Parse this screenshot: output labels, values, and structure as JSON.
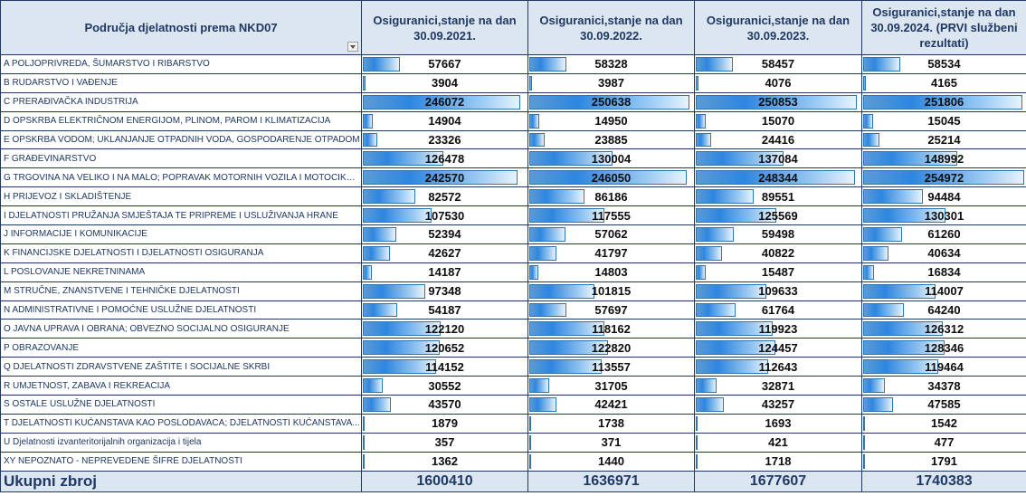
{
  "header": {
    "area": "Područja djelatnosti prema NKD07",
    "columns": [
      "Osiguranici,stanje na dan 30.09.2021.",
      "Osiguranici,stanje na dan 30.09.2022.",
      "Osiguranici,stanje na dan 30.09.2023.",
      "Osiguranici,stanje na dan 30.09.2024. (PRVI službeni rezultati)"
    ]
  },
  "rows": [
    {
      "label": "A POLJOPRIVREDA, ŠUMARSTVO I RIBARSTVO",
      "values": [
        "57667",
        "58328",
        "58457",
        "58534"
      ]
    },
    {
      "label": "B RUDARSTVO I VAĐENJE",
      "values": [
        "3904",
        "3987",
        "4076",
        "4165"
      ]
    },
    {
      "label": "C PRERAĐIVAČKA INDUSTRIJA",
      "values": [
        "246072",
        "250638",
        "250853",
        "251806"
      ]
    },
    {
      "label": "D OPSKRBA ELEKTRIČNOM ENERGIJOM, PLINOM, PAROM I KLIMATIZACIJA",
      "values": [
        "14904",
        "14950",
        "15070",
        "15045"
      ]
    },
    {
      "label": "E OPSKRBA VODOM; UKLANJANJE OTPADNIH VODA, GOSPODARENJE OTPADOM",
      "values": [
        "23326",
        "23885",
        "24416",
        "25214"
      ]
    },
    {
      "label": "F GRAĐEVINARSTVO",
      "values": [
        "126478",
        "130004",
        "137084",
        "148992"
      ]
    },
    {
      "label": "G TRGOVINA NA VELIKO I NA MALO; POPRAVAK MOTORNIH VOZILA I MOTOCIKALA",
      "values": [
        "242570",
        "246050",
        "248344",
        "254972"
      ]
    },
    {
      "label": "H PRIJEVOZ I SKLADIŠTENJE",
      "values": [
        "82572",
        "86186",
        "89551",
        "94484"
      ]
    },
    {
      "label": "I DJELATNOSTI PRUŽANJA SMJEŠTAJA TE PRIPREME I USLUŽIVANJA HRANE",
      "values": [
        "107530",
        "117555",
        "125569",
        "130301"
      ]
    },
    {
      "label": "J INFORMACIJE I KOMUNIKACIJE",
      "values": [
        "52394",
        "57062",
        "59498",
        "61260"
      ]
    },
    {
      "label": "K FINANCIJSKE DJELATNOSTI I DJELATNOSTI OSIGURANJA",
      "values": [
        "42627",
        "41797",
        "40822",
        "40634"
      ]
    },
    {
      "label": "L POSLOVANJE NEKRETNINAMA",
      "values": [
        "14187",
        "14803",
        "15487",
        "16834"
      ]
    },
    {
      "label": "M STRUČNE, ZNANSTVENE I TEHNIČKE DJELATNOSTI",
      "values": [
        "97348",
        "101815",
        "109633",
        "114007"
      ]
    },
    {
      "label": "N ADMINISTRATIVNE I POMOĆNE USLUŽNE DJELATNOSTI",
      "values": [
        "54187",
        "57697",
        "61764",
        "64240"
      ]
    },
    {
      "label": "O JAVNA UPRAVA I OBRANA; OBVEZNO SOCIJALNO OSIGURANJE",
      "values": [
        "122120",
        "118162",
        "119923",
        "126312"
      ]
    },
    {
      "label": "P OBRAZOVANJE",
      "values": [
        "120652",
        "122820",
        "124457",
        "128346"
      ]
    },
    {
      "label": "Q DJELATNOSTI ZDRAVSTVENE ZAŠTITE I SOCIJALNE SKRBI",
      "values": [
        "114152",
        "113557",
        "112643",
        "119464"
      ]
    },
    {
      "label": "R UMJETNOST, ZABAVA I REKREACIJA",
      "values": [
        "30552",
        "31705",
        "32871",
        "34378"
      ]
    },
    {
      "label": "S OSTALE USLUŽNE DJELATNOSTI",
      "values": [
        "43570",
        "42421",
        "43257",
        "47585"
      ]
    },
    {
      "label": "T DJELATNOSTI KUĆANSTAVA KAO POSLODAVACA; DJELATNOSTI KUĆANSTAVA...",
      "values": [
        "1879",
        "1738",
        "1693",
        "1542"
      ]
    },
    {
      "label": "U Djelatnosti izvanteritorijalnih organizacija i tijela",
      "values": [
        "357",
        "371",
        "421",
        "477"
      ]
    },
    {
      "label": "XY NEPOZNATO - NEPREVEDENE ŠIFRE DJELATNOSTI",
      "values": [
        "1362",
        "1440",
        "1718",
        "1791"
      ]
    }
  ],
  "total": {
    "label": "Ukupni zbroj",
    "values": [
      "1600410",
      "1636971",
      "1677607",
      "1740383"
    ]
  },
  "data_bar_max": 254972,
  "colors": {
    "header_bg": "#dce6f1",
    "text_blue": "#1f3864",
    "bar": "#2e86e0"
  }
}
